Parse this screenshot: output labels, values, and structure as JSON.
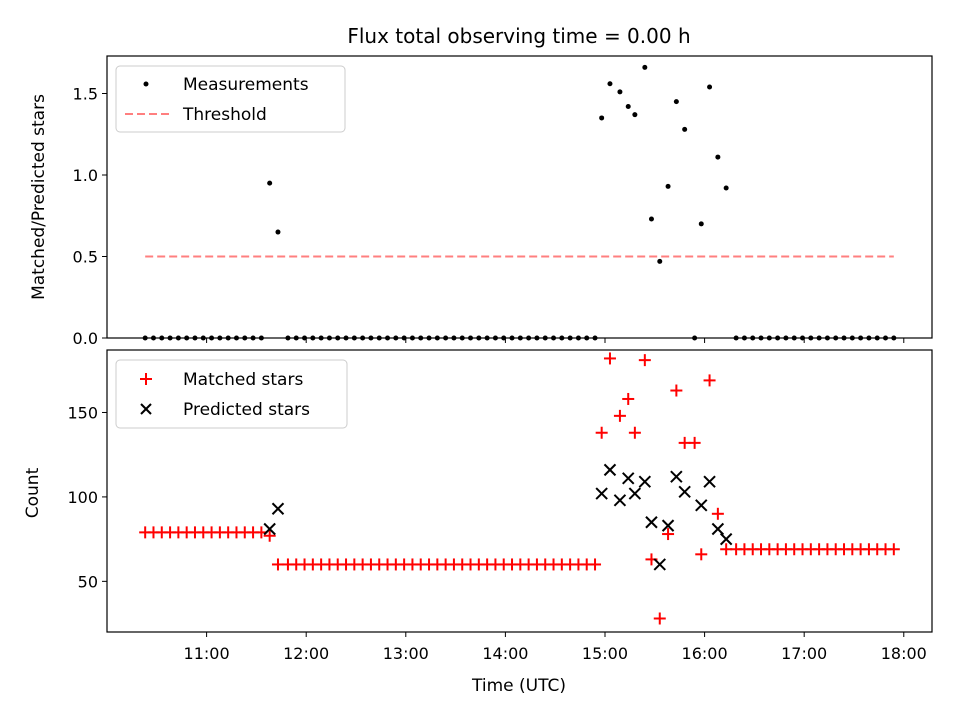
{
  "chart_data": [
    {
      "type": "scatter",
      "title": "Flux total observing time = 0.00 h",
      "xlabel": "",
      "ylabel": "Matched/Predicted stars",
      "ylim": [
        0,
        1.73
      ],
      "yticks": [
        "0.0",
        "0.5",
        "1.0",
        "1.5"
      ],
      "grid": false,
      "legend": {
        "position": "top-left",
        "entries": [
          "Measurements",
          "Threshold"
        ]
      },
      "colors": {
        "measurements": "#000000",
        "threshold": "#ff7f7f"
      },
      "series": [
        {
          "name": "Measurements",
          "points": [
            [
              "10:23",
              0
            ],
            [
              "10:28",
              0
            ],
            [
              "10:33",
              0
            ],
            [
              "10:38",
              0
            ],
            [
              "10:43",
              0
            ],
            [
              "10:48",
              0
            ],
            [
              "10:53",
              0
            ],
            [
              "10:58",
              0
            ],
            [
              "11:03",
              0
            ],
            [
              "11:08",
              0
            ],
            [
              "11:13",
              0
            ],
            [
              "11:18",
              0
            ],
            [
              "11:23",
              0
            ],
            [
              "11:28",
              0
            ],
            [
              "11:33",
              0
            ],
            [
              "11:38",
              0.95
            ],
            [
              "11:43",
              0.65
            ],
            [
              "11:49",
              0
            ],
            [
              "11:54",
              0
            ],
            [
              "11:59",
              0
            ],
            [
              "12:04",
              0
            ],
            [
              "12:09",
              0
            ],
            [
              "12:14",
              0
            ],
            [
              "12:19",
              0
            ],
            [
              "12:24",
              0
            ],
            [
              "12:29",
              0
            ],
            [
              "12:34",
              0
            ],
            [
              "12:39",
              0
            ],
            [
              "12:44",
              0
            ],
            [
              "12:49",
              0
            ],
            [
              "12:54",
              0
            ],
            [
              "12:59",
              0
            ],
            [
              "13:04",
              0
            ],
            [
              "13:09",
              0
            ],
            [
              "13:14",
              0
            ],
            [
              "13:19",
              0
            ],
            [
              "13:24",
              0
            ],
            [
              "13:29",
              0
            ],
            [
              "13:34",
              0
            ],
            [
              "13:39",
              0
            ],
            [
              "13:44",
              0
            ],
            [
              "13:49",
              0
            ],
            [
              "13:54",
              0
            ],
            [
              "13:59",
              0
            ],
            [
              "14:04",
              0
            ],
            [
              "14:09",
              0
            ],
            [
              "14:14",
              0
            ],
            [
              "14:19",
              0
            ],
            [
              "14:24",
              0
            ],
            [
              "14:29",
              0
            ],
            [
              "14:34",
              0
            ],
            [
              "14:39",
              0
            ],
            [
              "14:44",
              0
            ],
            [
              "14:49",
              0
            ],
            [
              "14:54",
              0
            ],
            [
              "14:58",
              1.35
            ],
            [
              "15:03",
              1.56
            ],
            [
              "15:09",
              1.51
            ],
            [
              "15:14",
              1.42
            ],
            [
              "15:18",
              1.37
            ],
            [
              "15:24",
              1.66
            ],
            [
              "15:28",
              0.73
            ],
            [
              "15:33",
              0.47
            ],
            [
              "15:38",
              0.93
            ],
            [
              "15:43",
              1.45
            ],
            [
              "15:48",
              1.28
            ],
            [
              "15:54",
              0
            ],
            [
              "15:58",
              0.7
            ],
            [
              "16:03",
              1.54
            ],
            [
              "16:08",
              1.11
            ],
            [
              "16:13",
              0.92
            ],
            [
              "16:19",
              0
            ],
            [
              "16:24",
              0
            ],
            [
              "16:29",
              0
            ],
            [
              "16:34",
              0
            ],
            [
              "16:39",
              0
            ],
            [
              "16:44",
              0
            ],
            [
              "16:49",
              0
            ],
            [
              "16:54",
              0
            ],
            [
              "16:59",
              0
            ],
            [
              "17:04",
              0
            ],
            [
              "17:09",
              0
            ],
            [
              "17:14",
              0
            ],
            [
              "17:19",
              0
            ],
            [
              "17:24",
              0
            ],
            [
              "17:29",
              0
            ],
            [
              "17:34",
              0
            ],
            [
              "17:39",
              0
            ],
            [
              "17:44",
              0
            ],
            [
              "17:49",
              0
            ],
            [
              "17:54",
              0
            ]
          ]
        },
        {
          "name": "Threshold",
          "points": [
            [
              "10:23",
              0.5
            ],
            [
              "17:54",
              0.5
            ]
          ]
        }
      ]
    },
    {
      "type": "scatter",
      "title": "",
      "xlabel": "Time (UTC)",
      "ylabel": "Count",
      "ylim": [
        20,
        187
      ],
      "yticks": [
        "50",
        "100",
        "150"
      ],
      "xlim": [
        "10:00",
        "18:17"
      ],
      "xticks": [
        "11:00",
        "12:00",
        "13:00",
        "14:00",
        "15:00",
        "16:00",
        "17:00",
        "18:00"
      ],
      "grid": false,
      "legend": {
        "position": "top-left",
        "entries": [
          "Matched stars",
          "Predicted stars"
        ]
      },
      "colors": {
        "matched": "#ff0000",
        "predicted": "#000000"
      },
      "series": [
        {
          "name": "Matched stars",
          "points": [
            [
              "10:23",
              79
            ],
            [
              "10:28",
              79
            ],
            [
              "10:33",
              79
            ],
            [
              "10:38",
              79
            ],
            [
              "10:43",
              79
            ],
            [
              "10:48",
              79
            ],
            [
              "10:53",
              79
            ],
            [
              "10:58",
              79
            ],
            [
              "11:03",
              79
            ],
            [
              "11:08",
              79
            ],
            [
              "11:13",
              79
            ],
            [
              "11:18",
              79
            ],
            [
              "11:23",
              79
            ],
            [
              "11:28",
              79
            ],
            [
              "11:33",
              79
            ],
            [
              "11:38",
              77
            ],
            [
              "11:43",
              60
            ],
            [
              "11:49",
              60
            ],
            [
              "11:54",
              60
            ],
            [
              "11:59",
              60
            ],
            [
              "12:04",
              60
            ],
            [
              "12:09",
              60
            ],
            [
              "12:14",
              60
            ],
            [
              "12:19",
              60
            ],
            [
              "12:24",
              60
            ],
            [
              "12:29",
              60
            ],
            [
              "12:34",
              60
            ],
            [
              "12:39",
              60
            ],
            [
              "12:44",
              60
            ],
            [
              "12:49",
              60
            ],
            [
              "12:54",
              60
            ],
            [
              "12:59",
              60
            ],
            [
              "13:04",
              60
            ],
            [
              "13:09",
              60
            ],
            [
              "13:14",
              60
            ],
            [
              "13:19",
              60
            ],
            [
              "13:24",
              60
            ],
            [
              "13:29",
              60
            ],
            [
              "13:34",
              60
            ],
            [
              "13:39",
              60
            ],
            [
              "13:44",
              60
            ],
            [
              "13:49",
              60
            ],
            [
              "13:54",
              60
            ],
            [
              "13:59",
              60
            ],
            [
              "14:04",
              60
            ],
            [
              "14:09",
              60
            ],
            [
              "14:14",
              60
            ],
            [
              "14:19",
              60
            ],
            [
              "14:24",
              60
            ],
            [
              "14:29",
              60
            ],
            [
              "14:34",
              60
            ],
            [
              "14:39",
              60
            ],
            [
              "14:44",
              60
            ],
            [
              "14:49",
              60
            ],
            [
              "14:54",
              60
            ],
            [
              "14:58",
              138
            ],
            [
              "15:03",
              182
            ],
            [
              "15:09",
              148
            ],
            [
              "15:14",
              158
            ],
            [
              "15:18",
              138
            ],
            [
              "15:24",
              181
            ],
            [
              "15:28",
              63
            ],
            [
              "15:33",
              28
            ],
            [
              "15:38",
              78
            ],
            [
              "15:43",
              163
            ],
            [
              "15:48",
              132
            ],
            [
              "15:54",
              132
            ],
            [
              "15:58",
              66
            ],
            [
              "16:03",
              169
            ],
            [
              "16:08",
              90
            ],
            [
              "16:13",
              69
            ],
            [
              "16:19",
              69
            ],
            [
              "16:24",
              69
            ],
            [
              "16:29",
              69
            ],
            [
              "16:34",
              69
            ],
            [
              "16:39",
              69
            ],
            [
              "16:44",
              69
            ],
            [
              "16:49",
              69
            ],
            [
              "16:54",
              69
            ],
            [
              "16:59",
              69
            ],
            [
              "17:04",
              69
            ],
            [
              "17:09",
              69
            ],
            [
              "17:14",
              69
            ],
            [
              "17:19",
              69
            ],
            [
              "17:24",
              69
            ],
            [
              "17:29",
              69
            ],
            [
              "17:34",
              69
            ],
            [
              "17:39",
              69
            ],
            [
              "17:44",
              69
            ],
            [
              "17:49",
              69
            ],
            [
              "17:54",
              69
            ]
          ]
        },
        {
          "name": "Predicted stars",
          "points": [
            [
              "11:38",
              81
            ],
            [
              "11:43",
              93
            ],
            [
              "14:58",
              102
            ],
            [
              "15:03",
              116
            ],
            [
              "15:09",
              98
            ],
            [
              "15:14",
              111
            ],
            [
              "15:18",
              102
            ],
            [
              "15:24",
              109
            ],
            [
              "15:28",
              85
            ],
            [
              "15:33",
              60
            ],
            [
              "15:38",
              83
            ],
            [
              "15:43",
              112
            ],
            [
              "15:48",
              103
            ],
            [
              "15:58",
              95
            ],
            [
              "16:03",
              109
            ],
            [
              "16:08",
              81
            ],
            [
              "16:13",
              75
            ]
          ]
        }
      ]
    }
  ]
}
